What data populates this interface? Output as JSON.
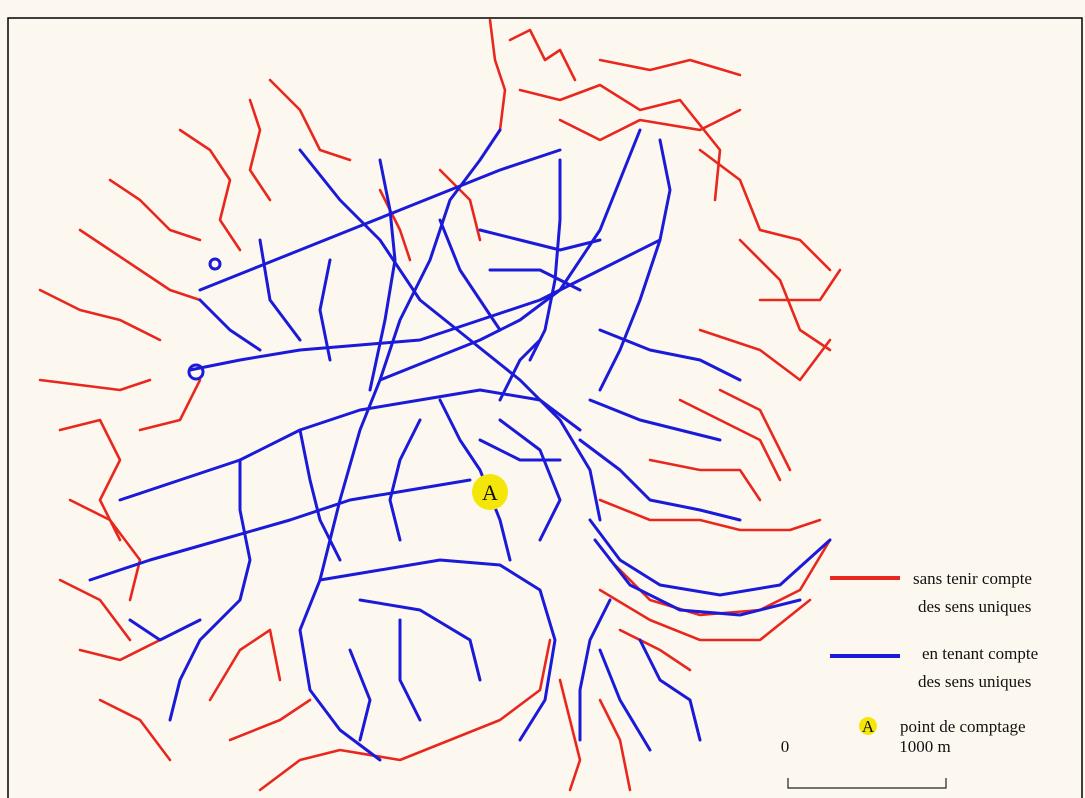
{
  "legend": {
    "items": [
      {
        "lines": [
          "sans tenir compte",
          "des sens uniques"
        ]
      },
      {
        "lines": [
          "en tenant compte",
          "des sens uniques"
        ]
      }
    ],
    "point": {
      "marker": "A",
      "label": "point de comptage"
    }
  },
  "map": {
    "point_label": "A"
  },
  "scale": {
    "start": "0",
    "end": "1000 m"
  }
}
